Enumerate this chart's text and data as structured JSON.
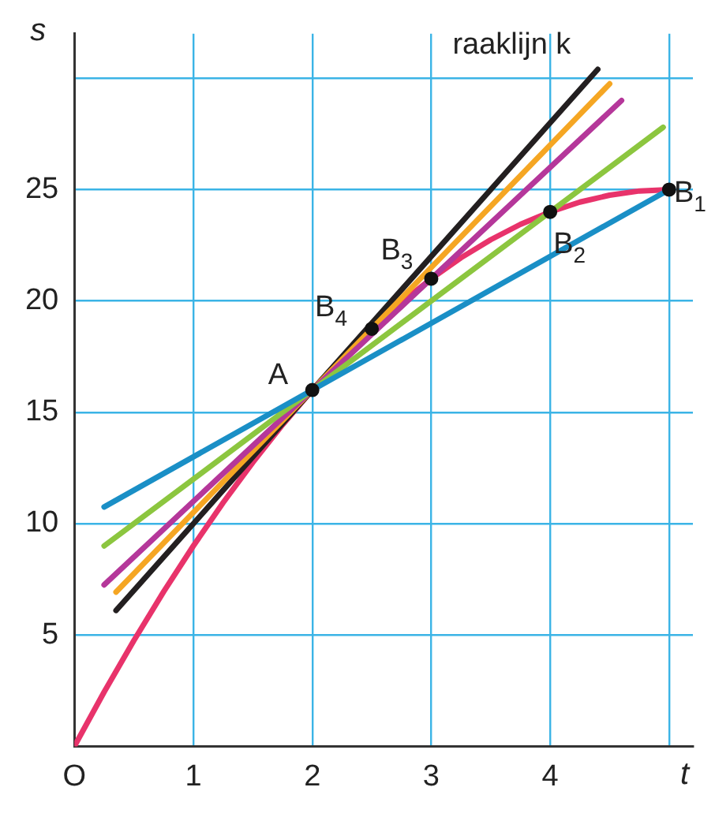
{
  "chart_data": {
    "type": "line",
    "xlabel": "t",
    "ylabel": "s",
    "xlim": [
      0,
      5.2
    ],
    "ylim": [
      0,
      32
    ],
    "xticks": [
      {
        "value": 0,
        "label": "O"
      },
      1,
      2,
      3,
      4,
      {
        "value": 5,
        "label": null
      }
    ],
    "yticks": [
      {
        "value": 0,
        "label": null
      },
      5,
      10,
      15,
      20,
      25,
      {
        "value": 30,
        "label": null
      }
    ],
    "grid": true,
    "legend": false,
    "series": [
      {
        "color": "#1a8fc6",
        "x": [
          0.25,
          5
        ],
        "values": [
          10.75,
          25
        ]
      },
      {
        "color": "#8cc63f",
        "x": [
          0.25,
          4.95
        ],
        "values": [
          9,
          27.8
        ]
      },
      {
        "color": "#b5379a",
        "x": [
          0.25,
          4.6
        ],
        "values": [
          7.25,
          29
        ]
      },
      {
        "color": "#f5a623",
        "x": [
          0.35,
          4.5
        ],
        "values": [
          6.93,
          29.75
        ]
      },
      {
        "color": "#231f20",
        "x": [
          0.35,
          4.4
        ],
        "values": [
          6.1,
          30.4
        ]
      },
      {
        "color": "#e8336b",
        "x": [
          0,
          0.25,
          0.5,
          0.75,
          1,
          1.25,
          1.5,
          1.75,
          2,
          2.25,
          2.5,
          2.75,
          3,
          3.25,
          3.5,
          3.75,
          4,
          4.25,
          4.5,
          4.75,
          5
        ],
        "values": [
          0,
          2.44,
          4.75,
          6.94,
          9,
          10.94,
          12.75,
          14.44,
          16,
          17.44,
          18.75,
          19.94,
          21,
          21.94,
          22.75,
          23.44,
          24,
          24.44,
          24.75,
          24.94,
          25
        ]
      },
      {
        "type": "scatter",
        "color": "#111111",
        "marker": "circle",
        "x": [
          2,
          2.5,
          3,
          4,
          5
        ],
        "values": [
          16,
          18.75,
          21,
          24,
          25
        ]
      }
    ],
    "annotations": [
      {
        "text": "A",
        "x": 2,
        "y": 16
      },
      {
        "text": "B$_{4}$",
        "x": 2.5,
        "y": 18.75
      },
      {
        "text": "B$_{3}$",
        "x": 3,
        "y": 21
      },
      {
        "text": "B$_{2}$",
        "x": 4,
        "y": 24
      },
      {
        "text": "B$_{1}$",
        "x": 5,
        "y": 25
      },
      {
        "text": "raaklijn k",
        "x": 4.4,
        "y": 30.4
      }
    ]
  }
}
